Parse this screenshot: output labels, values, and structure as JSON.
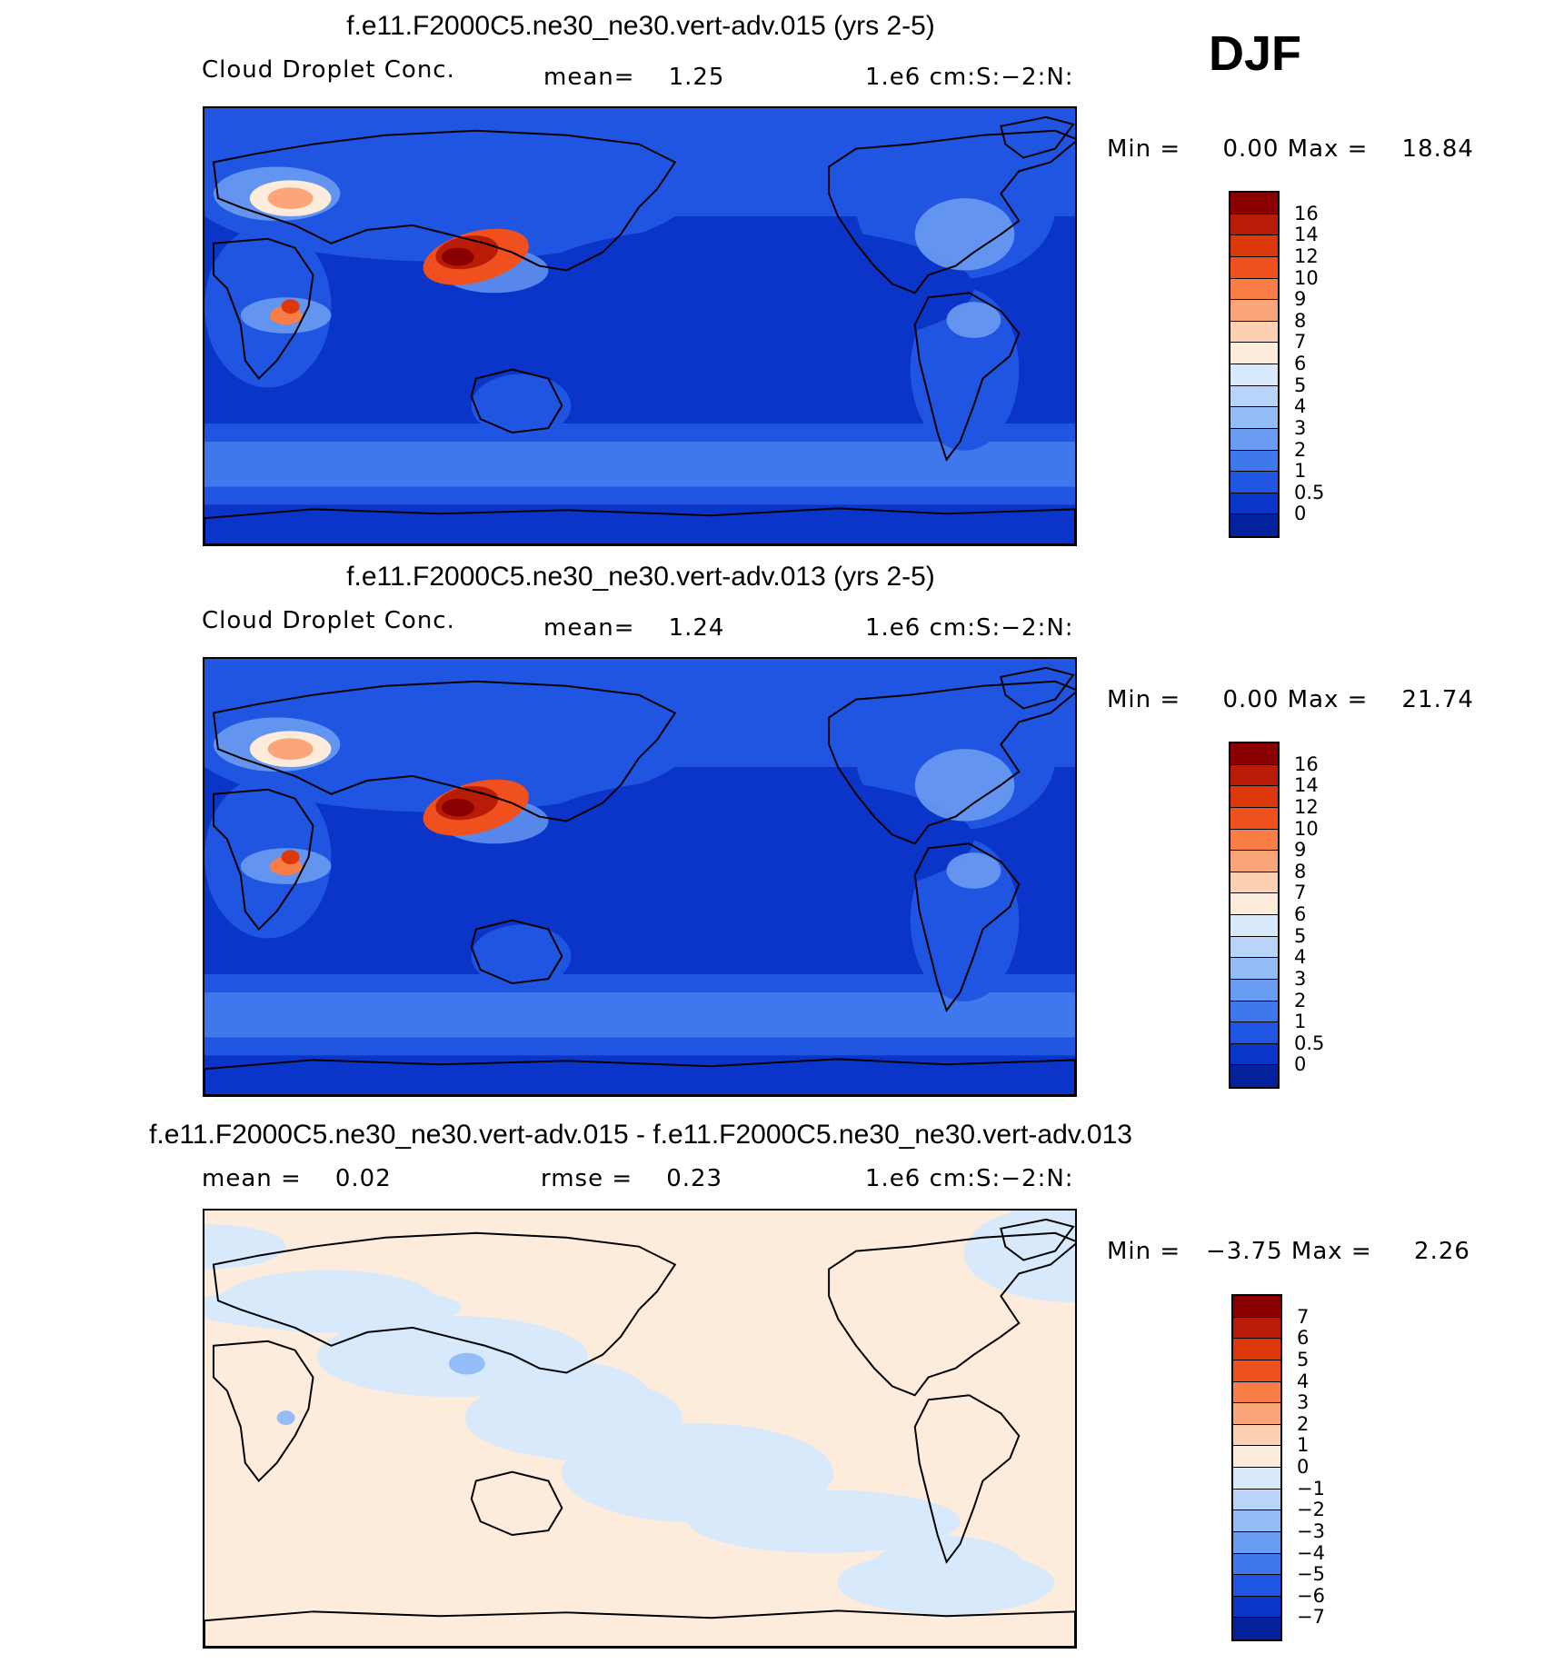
{
  "season": "DJF",
  "panels": [
    {
      "title": "f.e11.F2000C5.ne30_ne30.vert-adv.015 (yrs 2-5)",
      "left_label": "Cloud Droplet Conc.",
      "center_label": "mean=    1.25",
      "right_label": "1.e6 cm:S:−2:N:",
      "minmax": "Min =     0.00 Max =    18.84",
      "colorbar_levels": [
        "16",
        "14",
        "12",
        "10",
        "9",
        "8",
        "7",
        "6",
        "5",
        "4",
        "3",
        "2",
        "1",
        "0.5",
        "0"
      ],
      "colorbar_colors": [
        "#8a0000",
        "#b81c06",
        "#dc380a",
        "#f0501e",
        "#fa7d46",
        "#fca57a",
        "#fdd0b4",
        "#fdecdc",
        "#d8e9fb",
        "#b8d4fa",
        "#94bcf7",
        "#6a9cf2",
        "#3f78ec",
        "#1f55e0",
        "#0b35c8",
        "#03209d"
      ],
      "map_style": "field"
    },
    {
      "title": "f.e11.F2000C5.ne30_ne30.vert-adv.013 (yrs 2-5)",
      "left_label": "Cloud Droplet Conc.",
      "center_label": "mean=    1.24",
      "right_label": "1.e6 cm:S:−2:N:",
      "minmax": "Min =     0.00 Max =    21.74",
      "colorbar_levels": [
        "16",
        "14",
        "12",
        "10",
        "9",
        "8",
        "7",
        "6",
        "5",
        "4",
        "3",
        "2",
        "1",
        "0.5",
        "0"
      ],
      "colorbar_colors": [
        "#8a0000",
        "#b81c06",
        "#dc380a",
        "#f0501e",
        "#fa7d46",
        "#fca57a",
        "#fdd0b4",
        "#fdecdc",
        "#d8e9fb",
        "#b8d4fa",
        "#94bcf7",
        "#6a9cf2",
        "#3f78ec",
        "#1f55e0",
        "#0b35c8",
        "#03209d"
      ],
      "map_style": "field"
    },
    {
      "title": "f.e11.F2000C5.ne30_ne30.vert-adv.015 - f.e11.F2000C5.ne30_ne30.vert-adv.013",
      "left_label": "mean =    0.02",
      "center_label": "rmse =    0.23",
      "right_label": "1.e6 cm:S:−2:N:",
      "minmax": "Min =   −3.75 Max =     2.26",
      "colorbar_levels": [
        "7",
        "6",
        "5",
        "4",
        "3",
        "2",
        "1",
        "0",
        "−1",
        "−2",
        "−3",
        "−4",
        "−5",
        "−6",
        "−7"
      ],
      "colorbar_colors": [
        "#8a0000",
        "#b81c06",
        "#dc380a",
        "#f0501e",
        "#fa7d46",
        "#fca57a",
        "#fdd0b4",
        "#fdecdc",
        "#d8e9fb",
        "#b8d4fa",
        "#94bcf7",
        "#6a9cf2",
        "#3f78ec",
        "#1f55e0",
        "#0b35c8",
        "#03209d"
      ],
      "map_style": "difference"
    }
  ]
}
